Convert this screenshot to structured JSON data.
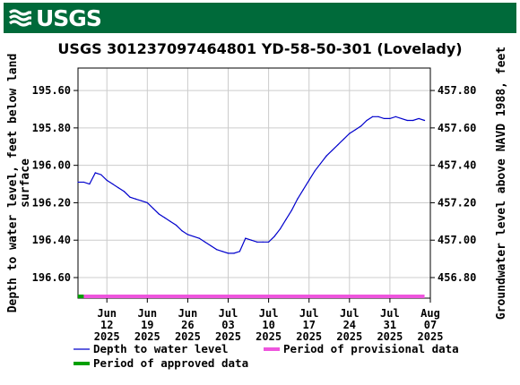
{
  "header": {
    "logo_text": "USGS",
    "brand_color": "#006a3a",
    "logo_icon": "usgs-wave-icon"
  },
  "chart_data": {
    "type": "line",
    "title": "USGS 301237097464801 YD-58-50-301 (Lovelady)",
    "ylabel_left": "Depth to water level, feet below land surface",
    "ylabel_right": "Groundwater level above NAVD 1988, feet",
    "y_left_ticks": [
      "195.60",
      "195.80",
      "196.00",
      "196.20",
      "196.40",
      "196.60"
    ],
    "y_left_values": [
      195.6,
      195.8,
      196.0,
      196.2,
      196.4,
      196.6
    ],
    "y_left_range": [
      195.48,
      196.71
    ],
    "y_left_inverted": true,
    "y_right_ticks": [
      "457.80",
      "457.60",
      "457.40",
      "457.20",
      "457.00",
      "456.80"
    ],
    "y_right_values": [
      457.8,
      457.6,
      457.4,
      457.2,
      457.0,
      456.8
    ],
    "datum_offset": 653.4,
    "x_ticks": [
      {
        "month": "Jun",
        "day": "12",
        "year": "2025",
        "date": "2025-06-12"
      },
      {
        "month": "Jun",
        "day": "19",
        "year": "2025",
        "date": "2025-06-19"
      },
      {
        "month": "Jun",
        "day": "26",
        "year": "2025",
        "date": "2025-06-26"
      },
      {
        "month": "Jul",
        "day": "03",
        "year": "2025",
        "date": "2025-07-03"
      },
      {
        "month": "Jul",
        "day": "10",
        "year": "2025",
        "date": "2025-07-10"
      },
      {
        "month": "Jul",
        "day": "17",
        "year": "2025",
        "date": "2025-07-17"
      },
      {
        "month": "Jul",
        "day": "24",
        "year": "2025",
        "date": "2025-07-24"
      },
      {
        "month": "Jul",
        "day": "31",
        "year": "2025",
        "date": "2025-07-31"
      },
      {
        "month": "Aug",
        "day": "07",
        "year": "2025",
        "date": "2025-08-07"
      }
    ],
    "x_range": [
      "2025-06-07",
      "2025-08-07"
    ],
    "grid": true,
    "series": [
      {
        "name": "Depth to water level",
        "color": "#0000cc",
        "points": [
          [
            "2025-06-07",
            196.09
          ],
          [
            "2025-06-08",
            196.09
          ],
          [
            "2025-06-09",
            196.1
          ],
          [
            "2025-06-10",
            196.04
          ],
          [
            "2025-06-11",
            196.05
          ],
          [
            "2025-06-12",
            196.08
          ],
          [
            "2025-06-13",
            196.1
          ],
          [
            "2025-06-14",
            196.12
          ],
          [
            "2025-06-15",
            196.14
          ],
          [
            "2025-06-16",
            196.17
          ],
          [
            "2025-06-17",
            196.18
          ],
          [
            "2025-06-18",
            196.19
          ],
          [
            "2025-06-19",
            196.2
          ],
          [
            "2025-06-20",
            196.23
          ],
          [
            "2025-06-21",
            196.26
          ],
          [
            "2025-06-22",
            196.28
          ],
          [
            "2025-06-23",
            196.3
          ],
          [
            "2025-06-24",
            196.32
          ],
          [
            "2025-06-25",
            196.35
          ],
          [
            "2025-06-26",
            196.37
          ],
          [
            "2025-06-27",
            196.38
          ],
          [
            "2025-06-28",
            196.39
          ],
          [
            "2025-06-29",
            196.41
          ],
          [
            "2025-06-30",
            196.43
          ],
          [
            "2025-07-01",
            196.45
          ],
          [
            "2025-07-02",
            196.46
          ],
          [
            "2025-07-03",
            196.47
          ],
          [
            "2025-07-04",
            196.47
          ],
          [
            "2025-07-05",
            196.46
          ],
          [
            "2025-07-06",
            196.39
          ],
          [
            "2025-07-07",
            196.4
          ],
          [
            "2025-07-08",
            196.41
          ],
          [
            "2025-07-09",
            196.41
          ],
          [
            "2025-07-10",
            196.41
          ],
          [
            "2025-07-11",
            196.38
          ],
          [
            "2025-07-12",
            196.34
          ],
          [
            "2025-07-13",
            196.29
          ],
          [
            "2025-07-14",
            196.24
          ],
          [
            "2025-07-15",
            196.18
          ],
          [
            "2025-07-16",
            196.13
          ],
          [
            "2025-07-17",
            196.08
          ],
          [
            "2025-07-18",
            196.03
          ],
          [
            "2025-07-19",
            195.99
          ],
          [
            "2025-07-20",
            195.95
          ],
          [
            "2025-07-21",
            195.92
          ],
          [
            "2025-07-22",
            195.89
          ],
          [
            "2025-07-23",
            195.86
          ],
          [
            "2025-07-24",
            195.83
          ],
          [
            "2025-07-25",
            195.81
          ],
          [
            "2025-07-26",
            195.79
          ],
          [
            "2025-07-27",
            195.76
          ],
          [
            "2025-07-28",
            195.74
          ],
          [
            "2025-07-29",
            195.74
          ],
          [
            "2025-07-30",
            195.75
          ],
          [
            "2025-07-31",
            195.75
          ],
          [
            "2025-08-01",
            195.74
          ],
          [
            "2025-08-02",
            195.75
          ],
          [
            "2025-08-03",
            195.76
          ],
          [
            "2025-08-04",
            195.76
          ],
          [
            "2025-08-05",
            195.75
          ],
          [
            "2025-08-06",
            195.76
          ]
        ]
      }
    ],
    "periods": [
      {
        "name": "Period of approved data",
        "color": "#00a000",
        "start": "2025-06-07",
        "end": "2025-06-08"
      },
      {
        "name": "Period of provisional data",
        "color": "#ee55dd",
        "start": "2025-06-08",
        "end": "2025-08-06"
      }
    ],
    "legend_placement": "bottom",
    "legend": [
      {
        "label": "Depth to water level",
        "color": "#0000cc",
        "kind": "line"
      },
      {
        "label": "Period of provisional data",
        "color": "#ee55dd",
        "kind": "bar"
      },
      {
        "label": "Period of approved data",
        "color": "#00a000",
        "kind": "bar"
      }
    ]
  }
}
